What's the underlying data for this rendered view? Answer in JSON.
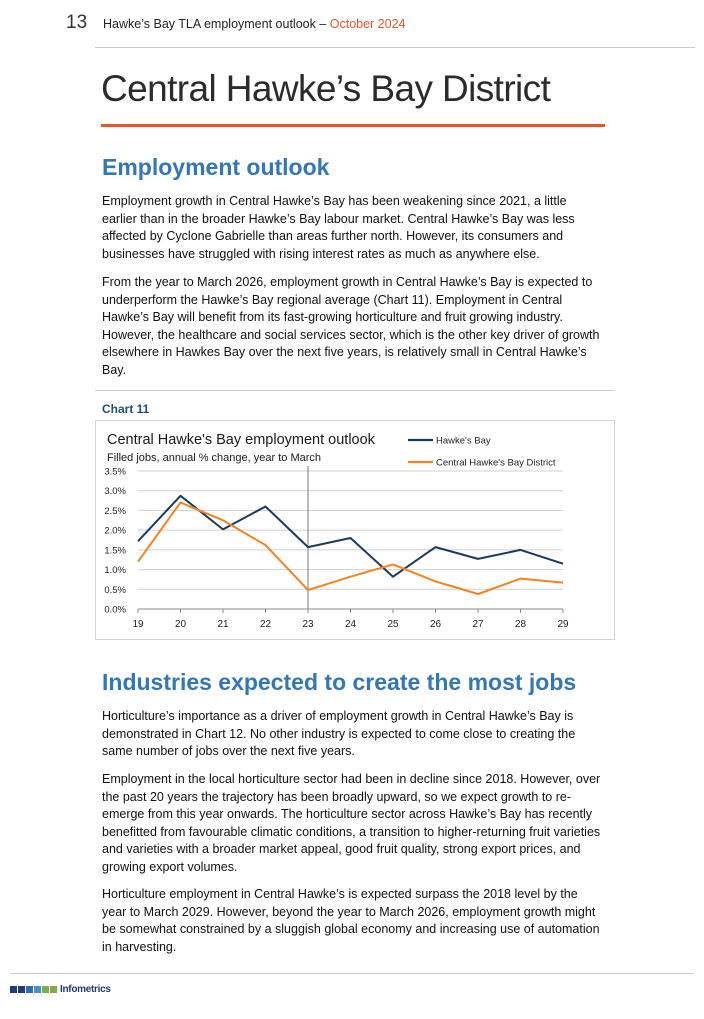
{
  "header": {
    "page_number": "13",
    "title": "Hawke’s Bay TLA employment outlook – ",
    "date": "October 2024"
  },
  "page_title": "Central Hawke’s Bay District",
  "section1": {
    "heading": "Employment outlook",
    "paragraphs": [
      "Employment growth in Central Hawke’s Bay has been weakening since 2021, a little earlier than in the broader Hawke’s Bay labour market. Central Hawke’s Bay was less affected by Cyclone Gabrielle than areas further north. However, its consumers and businesses have struggled with rising interest rates as much as anywhere else.",
      "From the year to March 2026, employment growth in Central Hawke’s Bay is expected to underperform the Hawke’s Bay regional average (Chart 11). Employment in Central Hawke’s Bay will benefit from its fast-growing horticulture and fruit growing industry. However, the healthcare and social services sector, which is the other key driver of growth elsewhere in Hawkes Bay over the next five years, is relatively small in Central Hawke’s Bay."
    ]
  },
  "chart_label": "Chart 11",
  "chart_data": {
    "type": "line",
    "title": "Central Hawke's Bay employment outlook",
    "subtitle": "Filled jobs, annual % change, year to March",
    "x": [
      "19",
      "20",
      "21",
      "22",
      "23",
      "24",
      "25",
      "26",
      "27",
      "28",
      "29"
    ],
    "ylim": [
      0,
      3.5
    ],
    "yticks": [
      "0.0%",
      "0.5%",
      "1.0%",
      "1.5%",
      "2.0%",
      "2.5%",
      "3.0%",
      "3.5%"
    ],
    "forecast_divider_at": "23",
    "grid": true,
    "legend_position": "top-right",
    "series": [
      {
        "name": "Hawke's Bay",
        "color": "#1b3a5c",
        "values": [
          1.72,
          2.87,
          2.02,
          2.6,
          1.57,
          1.8,
          0.82,
          1.57,
          1.27,
          1.5,
          1.15
        ]
      },
      {
        "name": "Central Hawke's Bay District",
        "color": "#f58220",
        "values": [
          1.2,
          2.7,
          2.25,
          1.62,
          0.48,
          0.82,
          1.13,
          0.7,
          0.38,
          0.77,
          0.67
        ]
      }
    ]
  },
  "section2": {
    "heading": "Industries expected to create the most jobs",
    "paragraphs": [
      "Horticulture’s importance as a driver of employment growth in Central Hawke’s Bay is demonstrated in Chart 12. No other industry is expected to come close to creating the same number of jobs over the next five years.",
      "Employment in the local horticulture sector had been in decline since 2018. However, over the past 20 years the trajectory has been broadly upward, so we expect growth to re-emerge from this year onwards. The horticulture sector across Hawke’s Bay has recently benefitted from favourable climatic conditions, a transition to higher-returning fruit varieties and varieties with a broader market appeal, good fruit quality, strong export prices, and growing export volumes.",
      "Horticulture employment in Central Hawke’s is expected surpass the 2018 level by the year to March 2029. However, beyond the year to March 2026, employment growth might be somewhat constrained by a sluggish global economy and increasing use of automation in harvesting."
    ]
  },
  "footer": {
    "logo_text": "Infometrics",
    "logo_colors": [
      "#1f3b6f",
      "#1f3b6f",
      "#2c6fb0",
      "#4a90c8",
      "#79b043",
      "#8aa64a"
    ]
  }
}
